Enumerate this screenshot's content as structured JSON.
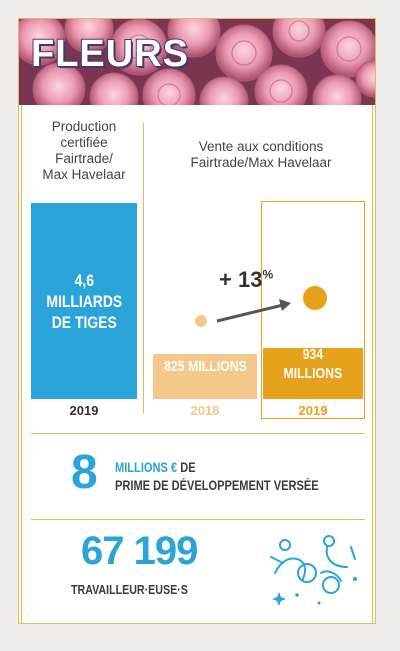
{
  "banner": {
    "title": "FLEURS"
  },
  "left_column": {
    "header": [
      "Production",
      "certifiée",
      "Fairtrade/",
      "Max Havelaar"
    ],
    "bar_text": [
      "4,6",
      "MILLIARDS",
      "DE TIGES"
    ],
    "year": "2019"
  },
  "right_column": {
    "header": [
      "Vente aux conditions",
      "Fairtrade/Max Havelaar"
    ],
    "growth_label": "+ 13",
    "growth_pct": "%",
    "bars": [
      {
        "label": "825 MILLIONS",
        "year": "2018"
      },
      {
        "label_line1": "934",
        "label_line2": "MILLIONS",
        "year": "2019"
      }
    ]
  },
  "prime": {
    "number": "8",
    "line1_blue": "MILLIONS €",
    "line1_rest": " DE",
    "line2": "PRIME DE DÉVELOPPEMENT VERSÉE"
  },
  "workers": {
    "number": "67 199",
    "label": "TRAVAILLEUR·EUSE·S"
  },
  "colors": {
    "blue": "#2ba4d9",
    "orange_dark": "#e6a21a",
    "orange_light": "#f3c88a",
    "frame": "#e6b85c"
  },
  "chart_data": {
    "type": "bar",
    "title": "",
    "categories": [
      "2018",
      "2019"
    ],
    "series": [
      {
        "name": "Vente aux conditions Fairtrade/Max Havelaar",
        "values": [
          825,
          934
        ]
      }
    ],
    "unit": "MILLIONS",
    "growth_percent": 13,
    "production_2019": {
      "value": 4.6,
      "unit": "MILLIARDS DE TIGES"
    }
  }
}
